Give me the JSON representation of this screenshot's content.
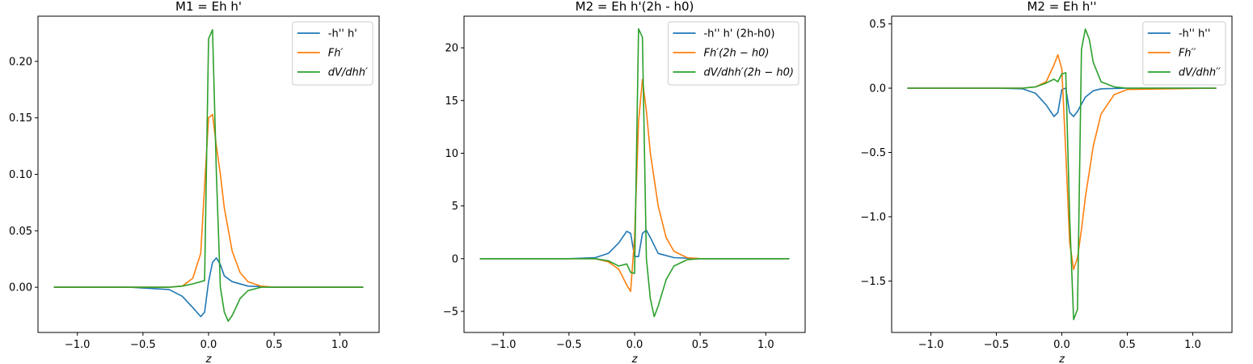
{
  "chart_data": [
    {
      "type": "line",
      "title": "M1 = Eh h'",
      "xlabel": "z",
      "xlim": [
        -1.3,
        1.3
      ],
      "ylim": [
        -0.04,
        0.24
      ],
      "xticks": [
        -1.0,
        -0.5,
        0.0,
        0.5,
        1.0
      ],
      "xtick_labels": [
        "−1.0",
        "−0.5",
        "0.0",
        "0.5",
        "1.0"
      ],
      "yticks": [
        0.0,
        0.05,
        0.1,
        0.15,
        0.2
      ],
      "ytick_labels": [
        "0.00",
        "0.05",
        "0.10",
        "0.15",
        "0.20"
      ],
      "legend_position": "top-right",
      "series": [
        {
          "name": "-h'' h'",
          "color": "#1f77b4",
          "x": [
            -1.18,
            -0.6,
            -0.3,
            -0.2,
            -0.12,
            -0.06,
            -0.03,
            0.0,
            0.03,
            0.06,
            0.09,
            0.12,
            0.18,
            0.3,
            0.5,
            1.18
          ],
          "y": [
            0.0,
            0.0,
            -0.002,
            -0.008,
            -0.018,
            -0.026,
            -0.022,
            0.005,
            0.022,
            0.026,
            0.02,
            0.01,
            0.005,
            0.001,
            0.0,
            0.0
          ]
        },
        {
          "name": "Fh′",
          "color": "#ff7f0e",
          "x": [
            -1.18,
            -0.6,
            -0.3,
            -0.2,
            -0.12,
            -0.06,
            -0.03,
            0.0,
            0.03,
            0.06,
            0.09,
            0.12,
            0.18,
            0.24,
            0.3,
            0.4,
            0.5,
            1.18
          ],
          "y": [
            0.0,
            0.0,
            0.0,
            0.001,
            0.008,
            0.03,
            0.09,
            0.15,
            0.153,
            0.125,
            0.1,
            0.07,
            0.032,
            0.013,
            0.005,
            0.001,
            0.0,
            0.0
          ]
        },
        {
          "name": "dV/dhh′",
          "color": "#2ca02c",
          "x": [
            -1.18,
            -0.6,
            -0.3,
            -0.2,
            -0.12,
            -0.06,
            -0.03,
            0.0,
            0.03,
            0.06,
            0.09,
            0.12,
            0.15,
            0.18,
            0.24,
            0.3,
            0.4,
            0.5,
            1.18
          ],
          "y": [
            0.0,
            0.0,
            0.0,
            0.001,
            0.003,
            0.005,
            0.006,
            0.22,
            0.228,
            0.1,
            0.0,
            -0.022,
            -0.03,
            -0.025,
            -0.01,
            -0.003,
            0.0,
            0.0,
            0.0
          ]
        }
      ]
    },
    {
      "type": "line",
      "title": "M2 = Eh h'(2h - h0)",
      "xlabel": "z",
      "xlim": [
        -1.3,
        1.3
      ],
      "ylim": [
        -7,
        23
      ],
      "xticks": [
        -1.0,
        -0.5,
        0.0,
        0.5,
        1.0
      ],
      "xtick_labels": [
        "−1.0",
        "−0.5",
        "0.0",
        "0.5",
        "1.0"
      ],
      "yticks": [
        -5,
        0,
        5,
        10,
        15,
        20
      ],
      "ytick_labels": [
        "−5",
        "0",
        "5",
        "10",
        "15",
        "20"
      ],
      "legend_position": "top-right",
      "series": [
        {
          "name": "-h'' h' (2h-h0)",
          "color": "#1f77b4",
          "x": [
            -1.18,
            -0.5,
            -0.3,
            -0.2,
            -0.12,
            -0.06,
            -0.03,
            0.0,
            0.03,
            0.06,
            0.09,
            0.12,
            0.18,
            0.3,
            0.5,
            1.18
          ],
          "y": [
            0.0,
            0.0,
            0.1,
            0.5,
            1.5,
            2.6,
            2.4,
            0.2,
            0.2,
            2.4,
            2.7,
            2.0,
            0.5,
            0.1,
            0.0,
            0.0
          ]
        },
        {
          "name": "Fh′(2h − h0)",
          "color": "#ff7f0e",
          "x": [
            -1.18,
            -0.5,
            -0.3,
            -0.2,
            -0.12,
            -0.06,
            -0.03,
            0.0,
            0.03,
            0.06,
            0.09,
            0.12,
            0.18,
            0.24,
            0.3,
            0.4,
            0.5,
            1.18
          ],
          "y": [
            0.0,
            0.0,
            0.0,
            -0.3,
            -1.0,
            -2.5,
            -3.1,
            2.0,
            13.0,
            17.0,
            14.0,
            10.0,
            5.0,
            2.0,
            0.7,
            0.1,
            0.0,
            0.0
          ]
        },
        {
          "name": "dV/dhh′(2h − h0)",
          "color": "#2ca02c",
          "x": [
            -1.18,
            -0.5,
            -0.3,
            -0.2,
            -0.12,
            -0.06,
            -0.03,
            0.0,
            0.03,
            0.06,
            0.09,
            0.12,
            0.15,
            0.18,
            0.24,
            0.3,
            0.4,
            0.5,
            1.18
          ],
          "y": [
            0.0,
            0.0,
            0.0,
            -0.2,
            -0.7,
            -0.5,
            -1.3,
            -1.4,
            21.8,
            21.0,
            0.0,
            -3.8,
            -5.5,
            -4.5,
            -2.0,
            -0.7,
            -0.1,
            0.0,
            0.0
          ]
        }
      ]
    },
    {
      "type": "line",
      "title": "M2 = Eh h''",
      "xlabel": "z",
      "xlim": [
        -1.3,
        1.3
      ],
      "ylim": [
        -1.9,
        0.56
      ],
      "xticks": [
        -1.0,
        -0.5,
        0.0,
        0.5,
        1.0
      ],
      "xtick_labels": [
        "−1.0",
        "−0.5",
        "0.0",
        "0.5",
        "1.0"
      ],
      "yticks": [
        -1.5,
        -1.0,
        -0.5,
        0.0,
        0.5
      ],
      "ytick_labels": [
        "−1.5",
        "−1.0",
        "−0.5",
        "0.0",
        "0.5"
      ],
      "legend_position": "top-right",
      "series": [
        {
          "name": "-h'' h''",
          "color": "#1f77b4",
          "x": [
            -1.18,
            -0.5,
            -0.3,
            -0.2,
            -0.12,
            -0.06,
            -0.03,
            0.0,
            0.03,
            0.06,
            0.09,
            0.12,
            0.18,
            0.24,
            0.3,
            0.5,
            1.18
          ],
          "y": [
            0.0,
            0.0,
            -0.005,
            -0.04,
            -0.13,
            -0.22,
            -0.19,
            -0.01,
            0.0,
            -0.19,
            -0.22,
            -0.18,
            -0.07,
            -0.02,
            -0.005,
            0.0,
            0.0
          ]
        },
        {
          "name": "Fh′′",
          "color": "#ff7f0e",
          "x": [
            -1.18,
            -0.5,
            -0.3,
            -0.2,
            -0.12,
            -0.06,
            -0.03,
            0.0,
            0.03,
            0.06,
            0.09,
            0.12,
            0.15,
            0.18,
            0.24,
            0.3,
            0.4,
            0.5,
            1.18
          ],
          "y": [
            0.0,
            0.0,
            0.0,
            0.01,
            0.05,
            0.18,
            0.26,
            0.15,
            -0.5,
            -1.2,
            -1.41,
            -1.32,
            -1.1,
            -0.85,
            -0.45,
            -0.2,
            -0.05,
            -0.01,
            0.0
          ]
        },
        {
          "name": "dV/dhh′′",
          "color": "#2ca02c",
          "x": [
            -1.18,
            -0.5,
            -0.3,
            -0.2,
            -0.12,
            -0.06,
            -0.03,
            0.0,
            0.03,
            0.06,
            0.09,
            0.12,
            0.15,
            0.18,
            0.21,
            0.24,
            0.3,
            0.4,
            0.5,
            1.18
          ],
          "y": [
            0.0,
            0.0,
            0.0,
            0.01,
            0.04,
            0.07,
            0.05,
            0.11,
            0.12,
            -1.0,
            -1.8,
            -1.72,
            0.3,
            0.46,
            0.38,
            0.2,
            0.05,
            0.01,
            0.0,
            0.0
          ]
        }
      ]
    }
  ]
}
